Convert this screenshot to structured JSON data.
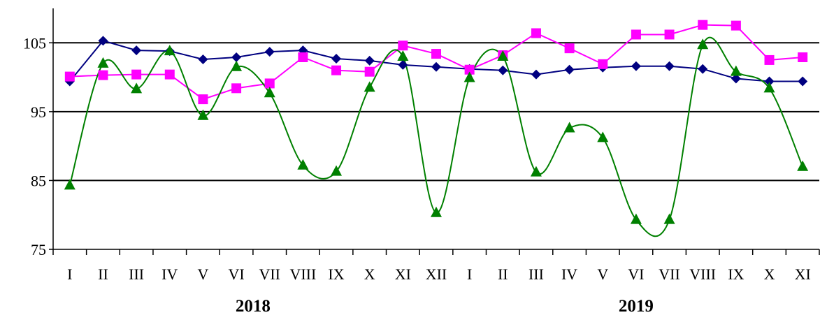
{
  "chart_data": {
    "type": "line",
    "title": "",
    "xlabel": "",
    "ylabel": "",
    "ylim": [
      75,
      110
    ],
    "yticks": [
      75,
      85,
      95,
      105
    ],
    "grid": "horizontal",
    "legend": "none",
    "categories": [
      "I",
      "II",
      "III",
      "IV",
      "V",
      "VI",
      "VII",
      "VIII",
      "IX",
      "X",
      "XI",
      "XII",
      "I",
      "II",
      "III",
      "IV",
      "V",
      "VI",
      "VII",
      "VIII",
      "IX",
      "X",
      "XI"
    ],
    "year_labels": [
      {
        "label": "2018",
        "start_index": 0,
        "end_index": 11
      },
      {
        "label": "2019",
        "start_index": 12,
        "end_index": 22
      }
    ],
    "series": [
      {
        "color": "#000080",
        "marker": "diamond",
        "smooth": false,
        "values": [
          99.4,
          105.3,
          103.9,
          103.8,
          102.6,
          102.9,
          103.7,
          103.9,
          102.7,
          102.4,
          101.8,
          101.5,
          101.2,
          101.0,
          100.4,
          101.1,
          101.4,
          101.6,
          101.6,
          101.2,
          99.8,
          99.4,
          99.4
        ]
      },
      {
        "color": "#FF00FF",
        "marker": "square",
        "smooth": false,
        "values": [
          100.1,
          100.3,
          100.4,
          100.4,
          96.8,
          98.4,
          99.1,
          102.9,
          101.0,
          100.8,
          104.6,
          103.4,
          101.1,
          103.2,
          106.4,
          104.2,
          101.9,
          106.2,
          106.2,
          107.6,
          107.5,
          102.5,
          102.9
        ]
      },
      {
        "color": "#008000",
        "marker": "triangle",
        "smooth": true,
        "values": [
          84.3,
          102.0,
          98.3,
          103.8,
          94.4,
          101.5,
          97.7,
          87.2,
          86.3,
          98.5,
          103.0,
          80.3,
          99.9,
          103.0,
          86.2,
          92.6,
          91.2,
          79.3,
          79.3,
          104.7,
          100.8,
          98.4,
          87.0
        ]
      }
    ]
  }
}
